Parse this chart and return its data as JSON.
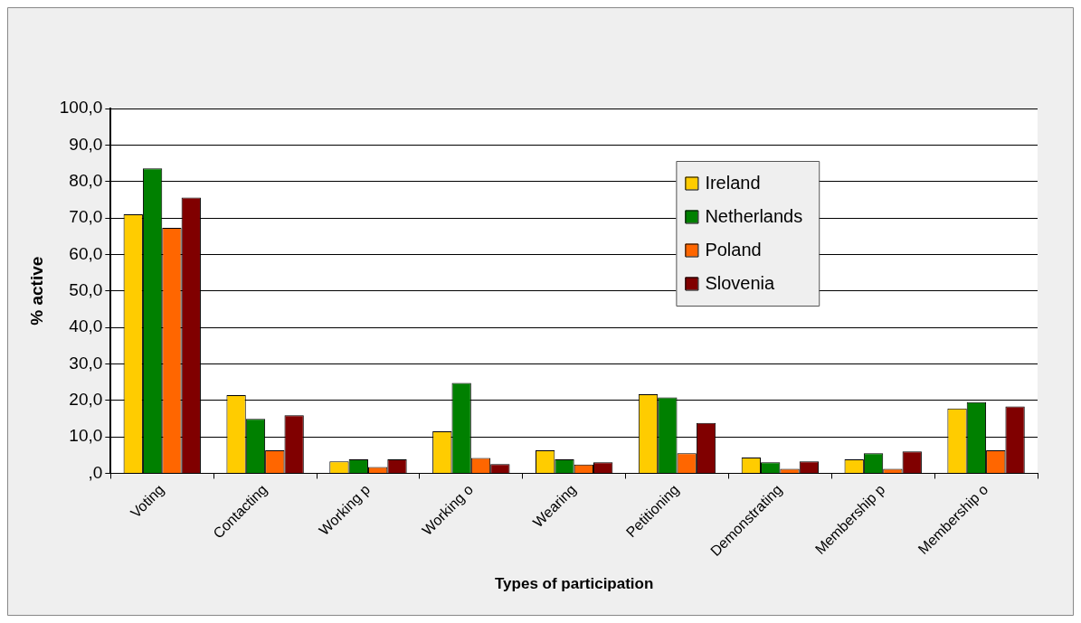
{
  "chart_data": {
    "type": "bar",
    "xlabel": "Types of participation",
    "ylabel": "% active",
    "categories": [
      "Voting",
      "Contacting",
      "Working p",
      "Working o",
      "Wearing",
      "Petitioning",
      "Demonstrating",
      "Membership p",
      "Membership o"
    ],
    "series": [
      {
        "name": "Ireland",
        "color": "#ffcc00",
        "values": [
          71.0,
          21.4,
          3.3,
          11.5,
          6.3,
          21.7,
          4.3,
          3.8,
          17.8
        ]
      },
      {
        "name": "Netherlands",
        "color": "#008000",
        "values": [
          83.6,
          14.9,
          3.8,
          24.8,
          3.8,
          20.8,
          3.0,
          5.5,
          19.5
        ]
      },
      {
        "name": "Poland",
        "color": "#ff6600",
        "values": [
          67.3,
          6.3,
          1.7,
          4.2,
          2.4,
          5.5,
          1.2,
          1.2,
          6.3
        ]
      },
      {
        "name": "Slovenia",
        "color": "#800000",
        "values": [
          75.6,
          15.9,
          3.8,
          2.5,
          3.0,
          13.8,
          3.3,
          6.0,
          18.3
        ]
      }
    ],
    "ylim": [
      0,
      100
    ],
    "yticks": [
      {
        "value": 0,
        "label": ",0"
      },
      {
        "value": 10,
        "label": "10,0"
      },
      {
        "value": 20,
        "label": "20,0"
      },
      {
        "value": 30,
        "label": "30,0"
      },
      {
        "value": 40,
        "label": "40,0"
      },
      {
        "value": 50,
        "label": "50,0"
      },
      {
        "value": 60,
        "label": "60,0"
      },
      {
        "value": 70,
        "label": "70,0"
      },
      {
        "value": 80,
        "label": "80,0"
      },
      {
        "value": 90,
        "label": "90,0"
      },
      {
        "value": 100,
        "label": "100,0"
      }
    ],
    "grid": "y",
    "legend": "top right"
  }
}
